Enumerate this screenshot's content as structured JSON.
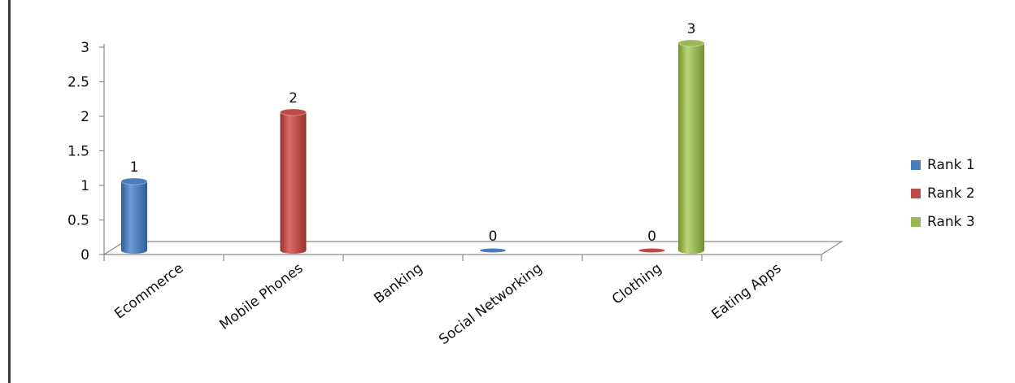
{
  "chart_data": {
    "type": "bar",
    "style": "3d-cylinder",
    "categories": [
      "Ecommerce",
      "Mobile Phones",
      "Banking",
      "Social Networking",
      "Clothing",
      "Eating Apps"
    ],
    "y_ticks": [
      "0",
      "0.5",
      "1",
      "1.5",
      "2",
      "2.5",
      "3"
    ],
    "ylim": [
      0,
      3
    ],
    "grid": false,
    "legend_position": "right",
    "series": [
      {
        "name": "Rank 1",
        "color": "#4a7ebb",
        "values": [
          1,
          null,
          null,
          0,
          null,
          null
        ],
        "labels": [
          "1",
          "",
          "",
          "0",
          "",
          ""
        ]
      },
      {
        "name": "Rank 2",
        "color": "#be4b48",
        "values": [
          null,
          2,
          null,
          null,
          0,
          null
        ],
        "labels": [
          "",
          "2",
          "",
          "",
          "0",
          ""
        ]
      },
      {
        "name": "Rank 3",
        "color": "#98b954",
        "values": [
          null,
          null,
          null,
          null,
          3,
          null
        ],
        "labels": [
          "",
          "",
          "",
          "",
          "3",
          ""
        ]
      }
    ]
  }
}
